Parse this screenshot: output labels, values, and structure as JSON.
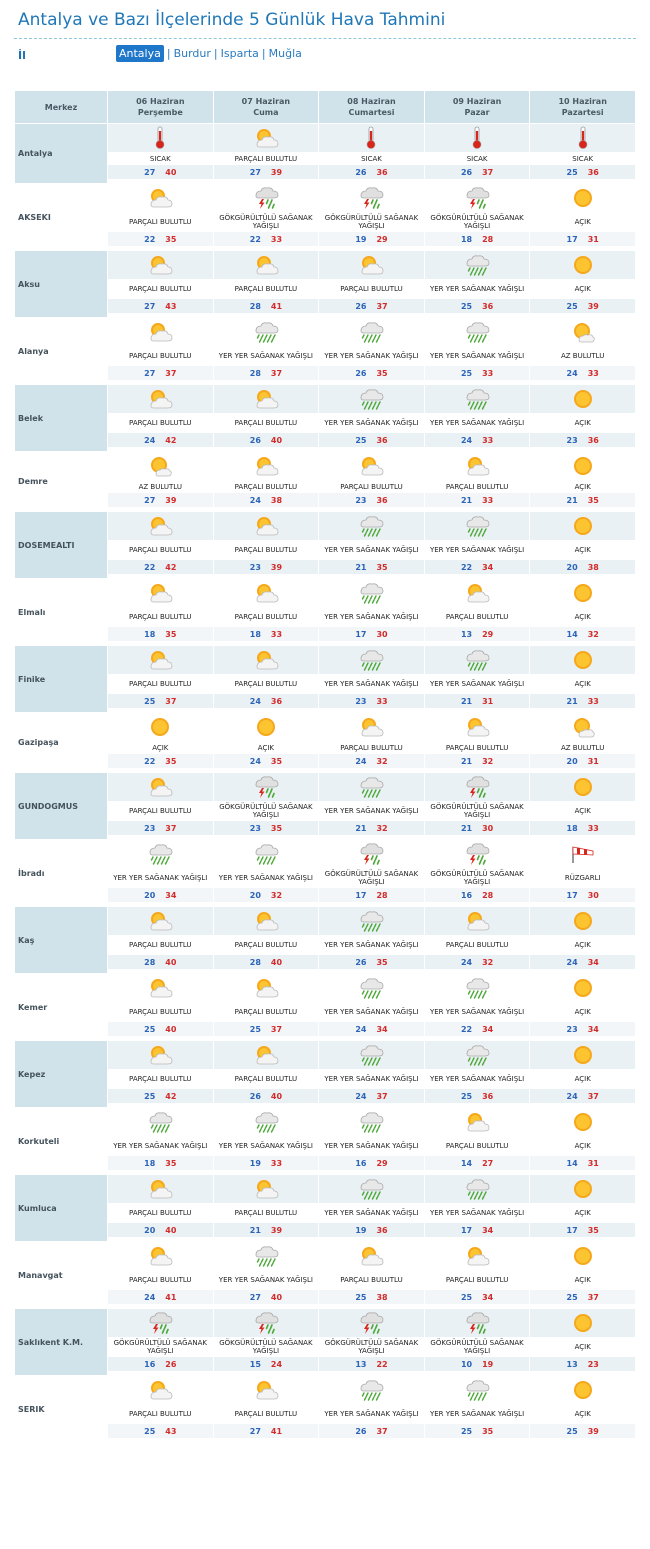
{
  "page": {
    "title": "Antalya ve Bazı İlçelerinde 5 Günlük Hava Tahmini",
    "il_label": "İl",
    "provinces": [
      {
        "label": "Antalya",
        "active": true
      },
      {
        "label": "Burdur",
        "active": false
      },
      {
        "label": "Isparta",
        "active": false
      },
      {
        "label": "Muğla",
        "active": false
      }
    ]
  },
  "header": {
    "merkez": "Merkez",
    "days": [
      {
        "date": "06 Haziran",
        "weekday": "Perşembe"
      },
      {
        "date": "07 Haziran",
        "weekday": "Cuma"
      },
      {
        "date": "08 Haziran",
        "weekday": "Cumartesi"
      },
      {
        "date": "09 Haziran",
        "weekday": "Pazar"
      },
      {
        "date": "10 Haziran",
        "weekday": "Pazartesi"
      }
    ]
  },
  "icons": {
    "hot": "thermometer-icon",
    "partly": "partly-cloudy-icon",
    "storm": "thunderstorm-icon",
    "showers": "showers-icon",
    "clear": "sun-icon",
    "mostly": "mostly-sunny-icon",
    "wind": "windsock-icon"
  },
  "colors": {
    "sun": "#f5a623",
    "min": "#2b64b8",
    "max": "#d22b2b",
    "header": "#d1e3ea"
  },
  "rows": [
    {
      "city": "Antalya",
      "height": 63,
      "days": [
        {
          "icon": "hot",
          "desc": "SICAK",
          "min": "27",
          "max": "40"
        },
        {
          "icon": "partly",
          "desc": "PARÇALI BULUTLU",
          "min": "27",
          "max": "39"
        },
        {
          "icon": "hot",
          "desc": "SICAK",
          "min": "26",
          "max": "36"
        },
        {
          "icon": "hot",
          "desc": "SICAK",
          "min": "26",
          "max": "37"
        },
        {
          "icon": "hot",
          "desc": "SICAK",
          "min": "25",
          "max": "36"
        }
      ]
    },
    {
      "city": "AKSEKI",
      "height": 70,
      "days": [
        {
          "icon": "partly",
          "desc": "PARÇALI BULUTLU",
          "min": "22",
          "max": "35"
        },
        {
          "icon": "storm",
          "desc": "GÖKGÜRÜLTÜLÜ SAĞANAK YAĞIŞLI",
          "min": "22",
          "max": "33"
        },
        {
          "icon": "storm",
          "desc": "GÖKGÜRÜLTÜLÜ SAĞANAK YAĞIŞLI",
          "min": "19",
          "max": "29"
        },
        {
          "icon": "storm",
          "desc": "GÖKGÜRÜLTÜLÜ SAĞANAK YAĞIŞLI",
          "min": "18",
          "max": "28"
        },
        {
          "icon": "clear",
          "desc": "AÇIK",
          "min": "17",
          "max": "31"
        }
      ]
    },
    {
      "city": "Aksu",
      "height": 70,
      "days": [
        {
          "icon": "partly",
          "desc": "PARÇALI BULUTLU",
          "min": "27",
          "max": "43"
        },
        {
          "icon": "partly",
          "desc": "PARÇALI BULUTLU",
          "min": "28",
          "max": "41"
        },
        {
          "icon": "partly",
          "desc": "PARÇALI BULUTLU",
          "min": "26",
          "max": "37"
        },
        {
          "icon": "showers",
          "desc": "YER YER SAĞANAK YAĞIŞLI",
          "min": "25",
          "max": "36"
        },
        {
          "icon": "clear",
          "desc": "AÇIK",
          "min": "25",
          "max": "39"
        }
      ]
    },
    {
      "city": "Alanya",
      "height": 70,
      "days": [
        {
          "icon": "partly",
          "desc": "PARÇALI BULUTLU",
          "min": "27",
          "max": "37"
        },
        {
          "icon": "showers",
          "desc": "YER YER SAĞANAK YAĞIŞLI",
          "min": "28",
          "max": "37"
        },
        {
          "icon": "showers",
          "desc": "YER YER SAĞANAK YAĞIŞLI",
          "min": "26",
          "max": "35"
        },
        {
          "icon": "showers",
          "desc": "YER YER SAĞANAK YAĞIŞLI",
          "min": "25",
          "max": "33"
        },
        {
          "icon": "mostly",
          "desc": "AZ BULUTLU",
          "min": "24",
          "max": "33"
        }
      ]
    },
    {
      "city": "Belek",
      "height": 70,
      "days": [
        {
          "icon": "partly",
          "desc": "PARÇALI BULUTLU",
          "min": "24",
          "max": "42"
        },
        {
          "icon": "partly",
          "desc": "PARÇALI BULUTLU",
          "min": "26",
          "max": "40"
        },
        {
          "icon": "showers",
          "desc": "YER YER SAĞANAK YAĞIŞLI",
          "min": "25",
          "max": "36"
        },
        {
          "icon": "showers",
          "desc": "YER YER SAĞANAK YAĞIŞLI",
          "min": "24",
          "max": "33"
        },
        {
          "icon": "clear",
          "desc": "AÇIK",
          "min": "23",
          "max": "36"
        }
      ]
    },
    {
      "city": "Demre",
      "height": 63,
      "days": [
        {
          "icon": "mostly",
          "desc": "AZ BULUTLU",
          "min": "27",
          "max": "39"
        },
        {
          "icon": "partly",
          "desc": "PARÇALI BULUTLU",
          "min": "24",
          "max": "38"
        },
        {
          "icon": "partly",
          "desc": "PARÇALI BULUTLU",
          "min": "23",
          "max": "36"
        },
        {
          "icon": "partly",
          "desc": "PARÇALI BULUTLU",
          "min": "21",
          "max": "33"
        },
        {
          "icon": "clear",
          "desc": "AÇIK",
          "min": "21",
          "max": "35"
        }
      ]
    },
    {
      "city": "DOSEMEALTI",
      "height": 70,
      "days": [
        {
          "icon": "partly",
          "desc": "PARÇALI BULUTLU",
          "min": "22",
          "max": "42"
        },
        {
          "icon": "partly",
          "desc": "PARÇALI BULUTLU",
          "min": "23",
          "max": "39"
        },
        {
          "icon": "showers",
          "desc": "YER YER SAĞANAK YAĞIŞLI",
          "min": "21",
          "max": "35"
        },
        {
          "icon": "showers",
          "desc": "YER YER SAĞANAK YAĞIŞLI",
          "min": "22",
          "max": "34"
        },
        {
          "icon": "clear",
          "desc": "AÇIK",
          "min": "20",
          "max": "38"
        }
      ]
    },
    {
      "city": "Elmalı",
      "height": 70,
      "days": [
        {
          "icon": "partly",
          "desc": "PARÇALI BULUTLU",
          "min": "18",
          "max": "35"
        },
        {
          "icon": "partly",
          "desc": "PARÇALI BULUTLU",
          "min": "18",
          "max": "33"
        },
        {
          "icon": "showers",
          "desc": "YER YER SAĞANAK YAĞIŞLI",
          "min": "17",
          "max": "30"
        },
        {
          "icon": "partly",
          "desc": "PARÇALI BULUTLU",
          "min": "13",
          "max": "29"
        },
        {
          "icon": "clear",
          "desc": "AÇIK",
          "min": "14",
          "max": "32"
        }
      ]
    },
    {
      "city": "Finike",
      "height": 70,
      "days": [
        {
          "icon": "partly",
          "desc": "PARÇALI BULUTLU",
          "min": "25",
          "max": "37"
        },
        {
          "icon": "partly",
          "desc": "PARÇALI BULUTLU",
          "min": "24",
          "max": "36"
        },
        {
          "icon": "showers",
          "desc": "YER YER SAĞANAK YAĞIŞLI",
          "min": "23",
          "max": "33"
        },
        {
          "icon": "showers",
          "desc": "YER YER SAĞANAK YAĞIŞLI",
          "min": "21",
          "max": "31"
        },
        {
          "icon": "clear",
          "desc": "AÇIK",
          "min": "21",
          "max": "33"
        }
      ]
    },
    {
      "city": "Gazipaşa",
      "height": 63,
      "days": [
        {
          "icon": "clear",
          "desc": "AÇIK",
          "min": "22",
          "max": "35"
        },
        {
          "icon": "clear",
          "desc": "AÇIK",
          "min": "24",
          "max": "35"
        },
        {
          "icon": "partly",
          "desc": "PARÇALI BULUTLU",
          "min": "24",
          "max": "32"
        },
        {
          "icon": "partly",
          "desc": "PARÇALI BULUTLU",
          "min": "21",
          "max": "32"
        },
        {
          "icon": "mostly",
          "desc": "AZ BULUTLU",
          "min": "20",
          "max": "31"
        }
      ]
    },
    {
      "city": "GUNDOGMUS",
      "height": 70,
      "days": [
        {
          "icon": "partly",
          "desc": "PARÇALI BULUTLU",
          "min": "23",
          "max": "37"
        },
        {
          "icon": "storm",
          "desc": "GÖKGÜRÜLTÜLÜ SAĞANAK YAĞIŞLI",
          "min": "23",
          "max": "35"
        },
        {
          "icon": "showers",
          "desc": "YER YER SAĞANAK YAĞIŞLI",
          "min": "21",
          "max": "32"
        },
        {
          "icon": "storm",
          "desc": "GÖKGÜRÜLTÜLÜ SAĞANAK YAĞIŞLI",
          "min": "21",
          "max": "30"
        },
        {
          "icon": "clear",
          "desc": "AÇIK",
          "min": "18",
          "max": "33"
        }
      ]
    },
    {
      "city": "İbradı",
      "height": 70,
      "days": [
        {
          "icon": "showers",
          "desc": "YER YER SAĞANAK YAĞIŞLI",
          "min": "20",
          "max": "34"
        },
        {
          "icon": "showers",
          "desc": "YER YER SAĞANAK YAĞIŞLI",
          "min": "20",
          "max": "32"
        },
        {
          "icon": "storm",
          "desc": "GÖKGÜRÜLTÜLÜ SAĞANAK YAĞIŞLI",
          "min": "17",
          "max": "28"
        },
        {
          "icon": "storm",
          "desc": "GÖKGÜRÜLTÜLÜ SAĞANAK YAĞIŞLI",
          "min": "16",
          "max": "28"
        },
        {
          "icon": "wind",
          "desc": "RÜZGARLI",
          "min": "17",
          "max": "30"
        }
      ]
    },
    {
      "city": "Kaş",
      "height": 70,
      "days": [
        {
          "icon": "partly",
          "desc": "PARÇALI BULUTLU",
          "min": "28",
          "max": "40"
        },
        {
          "icon": "partly",
          "desc": "PARÇALI BULUTLU",
          "min": "28",
          "max": "40"
        },
        {
          "icon": "showers",
          "desc": "YER YER SAĞANAK YAĞIŞLI",
          "min": "26",
          "max": "35"
        },
        {
          "icon": "partly",
          "desc": "PARÇALI BULUTLU",
          "min": "24",
          "max": "32"
        },
        {
          "icon": "clear",
          "desc": "AÇIK",
          "min": "24",
          "max": "34"
        }
      ]
    },
    {
      "city": "Kemer",
      "height": 70,
      "days": [
        {
          "icon": "partly",
          "desc": "PARÇALI BULUTLU",
          "min": "25",
          "max": "40"
        },
        {
          "icon": "partly",
          "desc": "PARÇALI BULUTLU",
          "min": "25",
          "max": "37"
        },
        {
          "icon": "showers",
          "desc": "YER YER SAĞANAK YAĞIŞLI",
          "min": "24",
          "max": "34"
        },
        {
          "icon": "showers",
          "desc": "YER YER SAĞANAK YAĞIŞLI",
          "min": "22",
          "max": "34"
        },
        {
          "icon": "clear",
          "desc": "AÇIK",
          "min": "23",
          "max": "34"
        }
      ]
    },
    {
      "city": "Kepez",
      "height": 70,
      "days": [
        {
          "icon": "partly",
          "desc": "PARÇALI BULUTLU",
          "min": "25",
          "max": "42"
        },
        {
          "icon": "partly",
          "desc": "PARÇALI BULUTLU",
          "min": "26",
          "max": "40"
        },
        {
          "icon": "showers",
          "desc": "YER YER SAĞANAK YAĞIŞLI",
          "min": "24",
          "max": "37"
        },
        {
          "icon": "showers",
          "desc": "YER YER SAĞANAK YAĞIŞLI",
          "min": "25",
          "max": "36"
        },
        {
          "icon": "clear",
          "desc": "AÇIK",
          "min": "24",
          "max": "37"
        }
      ]
    },
    {
      "city": "Korkuteli",
      "height": 70,
      "days": [
        {
          "icon": "showers",
          "desc": "YER YER SAĞANAK YAĞIŞLI",
          "min": "18",
          "max": "35"
        },
        {
          "icon": "showers",
          "desc": "YER YER SAĞANAK YAĞIŞLI",
          "min": "19",
          "max": "33"
        },
        {
          "icon": "showers",
          "desc": "YER YER SAĞANAK YAĞIŞLI",
          "min": "16",
          "max": "29"
        },
        {
          "icon": "partly",
          "desc": "PARÇALI BULUTLU",
          "min": "14",
          "max": "27"
        },
        {
          "icon": "clear",
          "desc": "AÇIK",
          "min": "14",
          "max": "31"
        }
      ]
    },
    {
      "city": "Kumluca",
      "height": 70,
      "days": [
        {
          "icon": "partly",
          "desc": "PARÇALI BULUTLU",
          "min": "20",
          "max": "40"
        },
        {
          "icon": "partly",
          "desc": "PARÇALI BULUTLU",
          "min": "21",
          "max": "39"
        },
        {
          "icon": "showers",
          "desc": "YER YER SAĞANAK YAĞIŞLI",
          "min": "19",
          "max": "36"
        },
        {
          "icon": "showers",
          "desc": "YER YER SAĞANAK YAĞIŞLI",
          "min": "17",
          "max": "34"
        },
        {
          "icon": "clear",
          "desc": "AÇIK",
          "min": "17",
          "max": "35"
        }
      ]
    },
    {
      "city": "Manavgat",
      "height": 70,
      "days": [
        {
          "icon": "partly",
          "desc": "PARÇALI BULUTLU",
          "min": "24",
          "max": "41"
        },
        {
          "icon": "showers",
          "desc": "YER YER SAĞANAK YAĞIŞLI",
          "min": "27",
          "max": "40"
        },
        {
          "icon": "partly",
          "desc": "PARÇALI BULUTLU",
          "min": "25",
          "max": "38"
        },
        {
          "icon": "partly",
          "desc": "PARÇALI BULUTLU",
          "min": "25",
          "max": "34"
        },
        {
          "icon": "clear",
          "desc": "AÇIK",
          "min": "25",
          "max": "37"
        }
      ]
    },
    {
      "city": "Saklıkent K.M.",
      "height": 70,
      "days": [
        {
          "icon": "storm",
          "desc": "GÖKGÜRÜLTÜLÜ SAĞANAK YAĞIŞLI",
          "min": "16",
          "max": "26"
        },
        {
          "icon": "storm",
          "desc": "GÖKGÜRÜLTÜLÜ SAĞANAK YAĞIŞLI",
          "min": "15",
          "max": "24"
        },
        {
          "icon": "storm",
          "desc": "GÖKGÜRÜLTÜLÜ SAĞANAK YAĞIŞLI",
          "min": "13",
          "max": "22"
        },
        {
          "icon": "storm",
          "desc": "GÖKGÜRÜLTÜLÜ SAĞANAK YAĞIŞLI",
          "min": "10",
          "max": "19"
        },
        {
          "icon": "clear",
          "desc": "AÇIK",
          "min": "13",
          "max": "23"
        }
      ]
    },
    {
      "city": "SERIK",
      "height": 70,
      "days": [
        {
          "icon": "partly",
          "desc": "PARÇALI BULUTLU",
          "min": "25",
          "max": "43"
        },
        {
          "icon": "partly",
          "desc": "PARÇALI BULUTLU",
          "min": "27",
          "max": "41"
        },
        {
          "icon": "showers",
          "desc": "YER YER SAĞANAK YAĞIŞLI",
          "min": "26",
          "max": "37"
        },
        {
          "icon": "showers",
          "desc": "YER YER SAĞANAK YAĞIŞLI",
          "min": "25",
          "max": "35"
        },
        {
          "icon": "clear",
          "desc": "AÇIK",
          "min": "25",
          "max": "39"
        }
      ]
    }
  ]
}
